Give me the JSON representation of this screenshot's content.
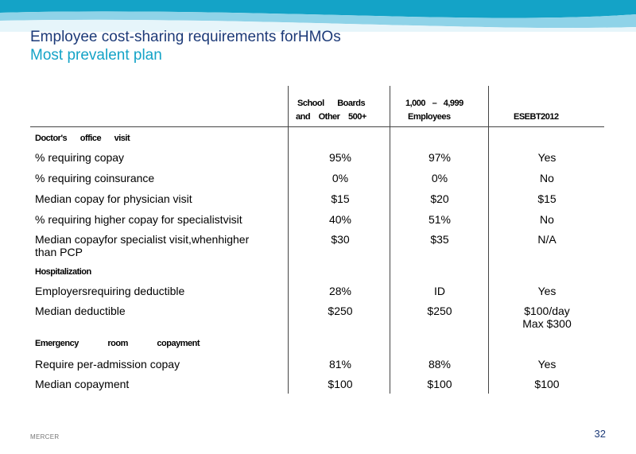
{
  "slide": {
    "title": "Employee cost-sharing requirements forHMOs",
    "subtitle": "Most prevalent plan",
    "footer_brand": "MERCER",
    "page_number": "32"
  },
  "table": {
    "headers": {
      "col1_line1": "School Boards",
      "col1_line2": "and Other 500+",
      "col2_line1": "1,000 – 4,999",
      "col2_line2": "Employees",
      "col3": "ESEBT2012"
    },
    "sections": {
      "doctor": "Doctor's office visit",
      "hospital": "Hospitalization",
      "emergency": "Emergency room copayment"
    },
    "rows": [
      {
        "label": "% requiring copay",
        "col1": "95%",
        "col2": "97%",
        "col3": "Yes"
      },
      {
        "label": "% requiring coinsurance",
        "col1": "0%",
        "col2": "0%",
        "col3": "No"
      },
      {
        "label": "Median copay for physician visit",
        "col1": "$15",
        "col2": "$20",
        "col3": "$15"
      },
      {
        "label": "% requiring higher copay for specialistvisit",
        "col1": "40%",
        "col2": "51%",
        "col3": "No"
      },
      {
        "label": "Median copayfor specialist visit,whenhigher",
        "label2": "than PCP",
        "col1": "$30",
        "col2": "$35",
        "col3": "N/A"
      },
      {
        "label": "Employersrequiring deductible",
        "col1": "28%",
        "col2": "ID",
        "col3": "Yes"
      },
      {
        "label": "Median deductible",
        "col1": "$250",
        "col2": "$250",
        "col3": "$100/day",
        "col3b": "Max $300"
      },
      {
        "label": "Require per-admission copay",
        "col1": "81%",
        "col2": "88%",
        "col3": "Yes"
      },
      {
        "label": "Median copayment",
        "col1": "$100",
        "col2": "$100",
        "col3": "$100"
      }
    ]
  }
}
